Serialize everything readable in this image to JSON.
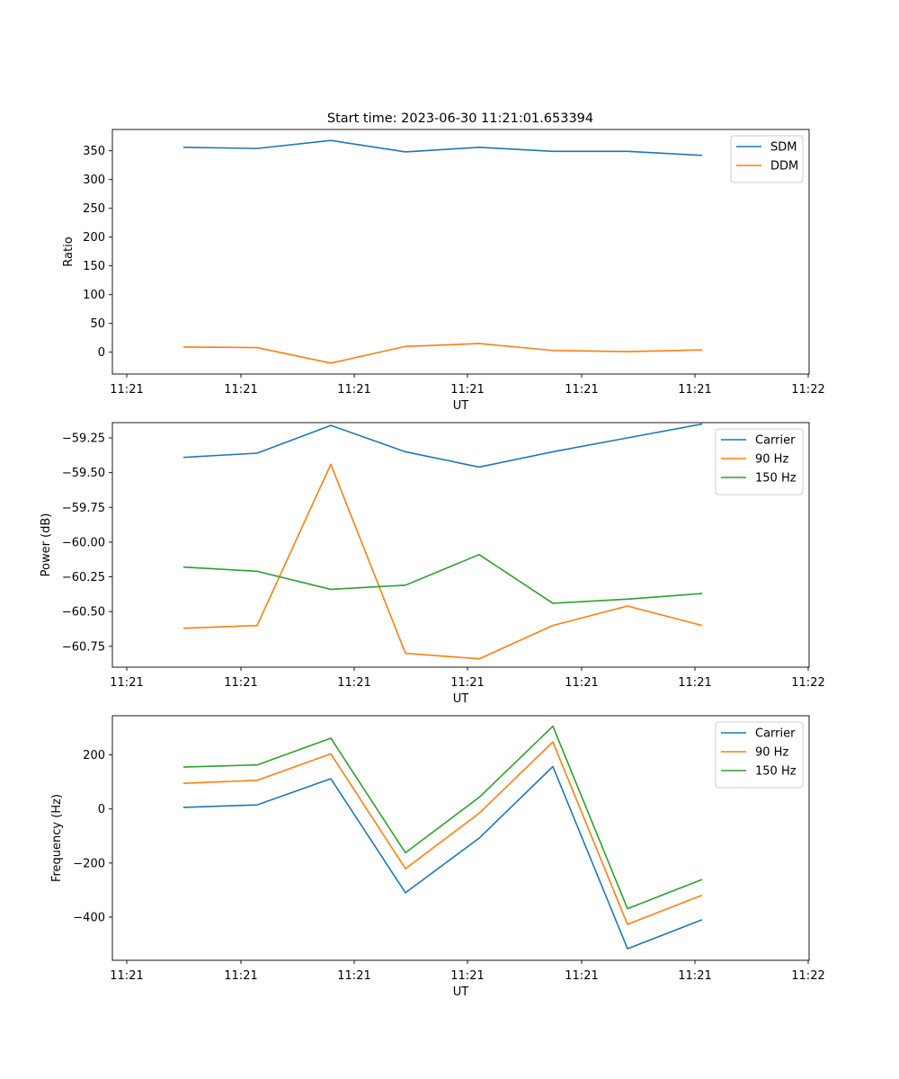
{
  "figure": {
    "title": "Start time: 2023-06-30 11:21:01.653394"
  },
  "colors": {
    "blue": "#1f77b4",
    "orange": "#ff7f0e",
    "green": "#2ca02c"
  },
  "chart_data": [
    {
      "type": "line",
      "title": "Start time: 2023-06-30 11:21:01.653394",
      "xlabel": "UT",
      "ylabel": "Ratio",
      "x_tick_labels": [
        "11:21",
        "11:21",
        "11:21",
        "11:21",
        "11:21",
        "11:21",
        "11:22"
      ],
      "ylim": [
        -38,
        387
      ],
      "y_ticks": [
        0,
        50,
        100,
        150,
        200,
        250,
        300,
        350
      ],
      "grid": false,
      "legend": "top-right",
      "series": [
        {
          "name": "SDM",
          "color": "#1f77b4",
          "values": [
            356,
            354,
            368,
            348,
            356,
            349,
            349,
            342
          ]
        },
        {
          "name": "DDM",
          "color": "#ff7f0e",
          "values": [
            9,
            8,
            -19,
            10,
            15,
            3,
            1,
            4
          ]
        }
      ]
    },
    {
      "type": "line",
      "title": "",
      "xlabel": "UT",
      "ylabel": "Power (dB)",
      "x_tick_labels": [
        "11:21",
        "11:21",
        "11:21",
        "11:21",
        "11:21",
        "11:21",
        "11:22"
      ],
      "ylim": [
        -60.9,
        -59.14
      ],
      "y_ticks": [
        -60.75,
        -60.5,
        -60.25,
        -60.0,
        -59.75,
        -59.5,
        -59.25
      ],
      "y_tick_labels": [
        "−60.75",
        "−60.50",
        "−60.25",
        "−60.00",
        "−59.75",
        "−59.50",
        "−59.25"
      ],
      "grid": false,
      "legend": "top-right",
      "series": [
        {
          "name": "Carrier",
          "color": "#1f77b4",
          "values": [
            -59.39,
            -59.36,
            -59.16,
            -59.35,
            -59.46,
            -59.35,
            -59.25,
            -59.15
          ]
        },
        {
          "name": "90 Hz",
          "color": "#ff7f0e",
          "values": [
            -60.62,
            -60.6,
            -59.44,
            -60.8,
            -60.84,
            -60.6,
            -60.46,
            -60.6
          ]
        },
        {
          "name": "150 Hz",
          "color": "#2ca02c",
          "values": [
            -60.18,
            -60.21,
            -60.34,
            -60.31,
            -60.09,
            -60.44,
            -60.41,
            -60.37
          ]
        }
      ]
    },
    {
      "type": "line",
      "title": "",
      "xlabel": "UT",
      "ylabel": "Frequency (Hz)",
      "x_tick_labels": [
        "11:21",
        "11:21",
        "11:21",
        "11:21",
        "11:21",
        "11:21",
        "11:22"
      ],
      "ylim": [
        -560,
        345
      ],
      "y_ticks": [
        -400,
        -200,
        0,
        200
      ],
      "y_tick_labels": [
        "−400",
        "−200",
        "0",
        "200"
      ],
      "grid": false,
      "legend": "top-right",
      "series": [
        {
          "name": "Carrier",
          "color": "#1f77b4",
          "values": [
            6,
            15,
            112,
            -310,
            -108,
            157,
            -517,
            -410
          ]
        },
        {
          "name": "90 Hz",
          "color": "#ff7f0e",
          "values": [
            95,
            106,
            204,
            -221,
            -16,
            248,
            -427,
            -319
          ]
        },
        {
          "name": "150 Hz",
          "color": "#2ca02c",
          "values": [
            155,
            163,
            262,
            -162,
            43,
            306,
            -369,
            -261
          ]
        }
      ]
    }
  ]
}
